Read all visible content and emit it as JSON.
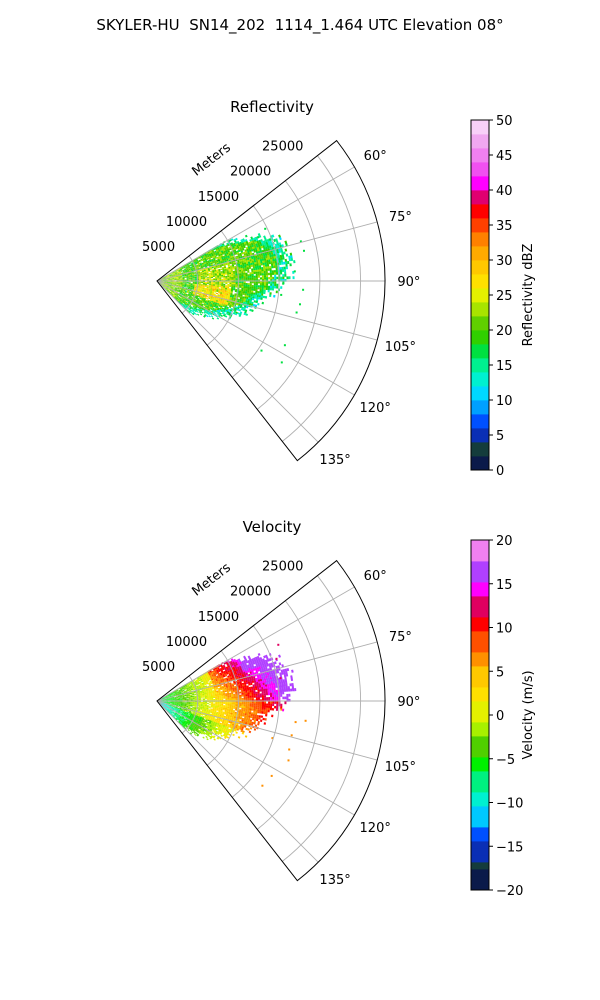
{
  "title": "SKYLER-HU  SN14_202  1114_1.464 UTC Elevation 08°",
  "chart_data": [
    {
      "type": "heatmap",
      "subplot": "polar-sector",
      "title": "Reflectivity",
      "range_label": "Meters",
      "range_ticks": [
        5000,
        10000,
        15000,
        20000,
        25000
      ],
      "range_tick_labels": [
        "5000",
        "10000",
        "15000",
        "20000",
        "25000"
      ],
      "range_max": 28000,
      "azimuth_min": 52,
      "azimuth_max": 142,
      "azimuth_ticks": [
        60,
        75,
        90,
        105,
        120,
        135
      ],
      "azimuth_tick_labels": [
        "60°",
        "75°",
        "90°",
        "105°",
        "120°",
        "135°"
      ],
      "grid": true,
      "colorbar": {
        "label": "Reflectivity dBZ",
        "min": 0,
        "max": 50,
        "ticks": [
          0,
          5,
          10,
          15,
          20,
          25,
          30,
          35,
          40,
          45,
          50
        ],
        "tick_labels": [
          "0",
          "5",
          "10",
          "15",
          "20",
          "25",
          "30",
          "35",
          "40",
          "45",
          "50"
        ]
      },
      "echo": {
        "azimuth_range": [
          60,
          135
        ],
        "max_range_m": 16500,
        "typical_value_range": [
          18,
          27
        ],
        "max_value": 35
      }
    },
    {
      "type": "heatmap",
      "subplot": "polar-sector",
      "title": "Velocity",
      "range_label": "Meters",
      "range_ticks": [
        5000,
        10000,
        15000,
        20000,
        25000
      ],
      "range_tick_labels": [
        "5000",
        "10000",
        "15000",
        "20000",
        "25000"
      ],
      "range_max": 28000,
      "azimuth_min": 52,
      "azimuth_max": 142,
      "azimuth_ticks": [
        60,
        75,
        90,
        105,
        120,
        135
      ],
      "azimuth_tick_labels": [
        "60°",
        "75°",
        "90°",
        "105°",
        "120°",
        "135°"
      ],
      "grid": true,
      "colorbar": {
        "label": "Velocity (m/s)",
        "min": -20,
        "max": 20,
        "ticks": [
          -20,
          -15,
          -10,
          -5,
          0,
          5,
          10,
          15,
          20
        ],
        "tick_labels": [
          "−20",
          "−15",
          "−10",
          "−5",
          "0",
          "5",
          "10",
          "15",
          "20"
        ]
      },
      "echo": {
        "azimuth_range": [
          60,
          135
        ],
        "max_range_m": 16500,
        "near_range_value": -8,
        "far_north_value": 15
      }
    }
  ],
  "colors": {
    "frame": "#000000",
    "grid": "#b0b0b0"
  }
}
